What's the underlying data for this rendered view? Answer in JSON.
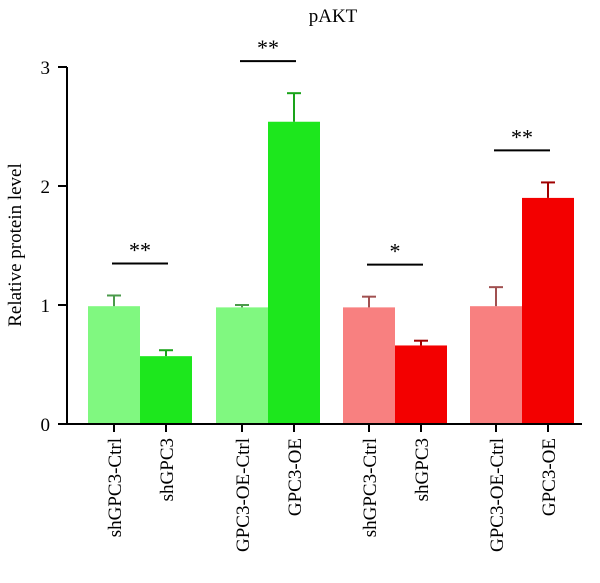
{
  "chart_data": {
    "type": "bar",
    "title": "pAKT",
    "ylabel": "Relative protein level",
    "ylim": [
      0,
      3
    ],
    "yticks": [
      0,
      1,
      2,
      3
    ],
    "categories": [
      "shGPC3-Ctrl",
      "shGPC3",
      "GPC3-OE-Ctrl",
      "GPC3-OE",
      "shGPC3-Ctrl",
      "shGPC3",
      "GPC3-OE-Ctrl",
      "GPC3-OE"
    ],
    "values": [
      0.99,
      0.57,
      0.98,
      2.54,
      0.98,
      0.66,
      0.99,
      1.9
    ],
    "errors": [
      0.09,
      0.05,
      0.02,
      0.24,
      0.09,
      0.04,
      0.16,
      0.13
    ],
    "colors": [
      "#80f880",
      "#1de71d",
      "#80f880",
      "#1de71d",
      "#f88080",
      "#f30000",
      "#f88080",
      "#f30000"
    ],
    "error_colors": [
      "#4a9a4a",
      "#1aa31a",
      "#4a9a4a",
      "#1aa31a",
      "#a05050",
      "#a00000",
      "#a05050",
      "#a00000"
    ],
    "significance": [
      {
        "from": 0,
        "to": 1,
        "label": "**"
      },
      {
        "from": 2,
        "to": 3,
        "label": "**"
      },
      {
        "from": 4,
        "to": 5,
        "label": "*"
      },
      {
        "from": 6,
        "to": 7,
        "label": "**"
      }
    ]
  }
}
